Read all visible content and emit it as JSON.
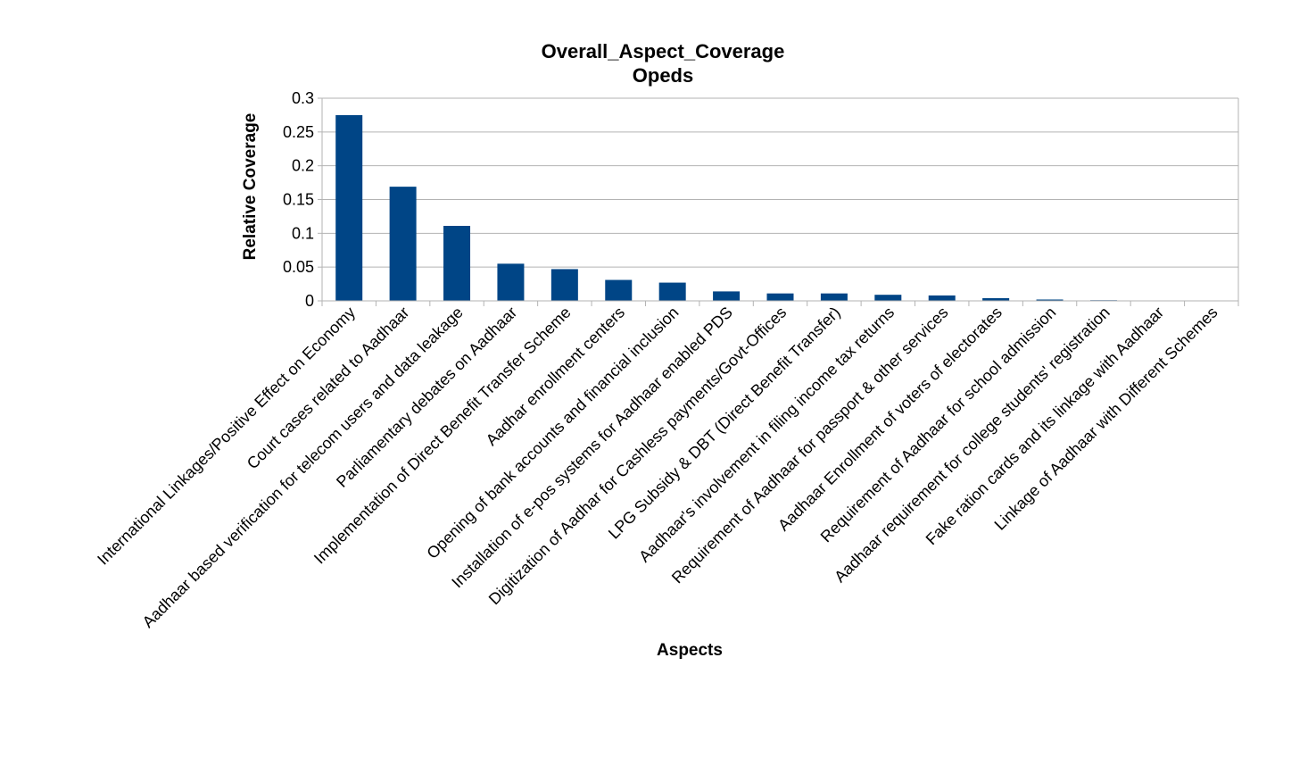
{
  "chart_data": {
    "type": "bar",
    "title": "Overall_Aspect_Coverage",
    "subtitle": "Opeds",
    "xlabel": "Aspects",
    "ylabel": "Relative Coverage",
    "ylim": [
      0,
      0.3
    ],
    "yticks": [
      0,
      0.05,
      0.1,
      0.15,
      0.2,
      0.25,
      0.3
    ],
    "ytick_labels": [
      "0",
      "0.05",
      "0.1",
      "0.15",
      "0.2",
      "0.25",
      "0.3"
    ],
    "grid": true,
    "legend": "none",
    "bar_color": "#004586",
    "categories": [
      "International Linkages/Positive Effect on Economy",
      "Court cases related to Aadhaar",
      "Aadhaar based verification for telecom users and data leakage",
      "Parliamentary debates on Aadhaar",
      "Implementation of Direct Benefit Transfer Scheme",
      "Aadhar enrollment centers",
      "Opening of bank accounts and financial inclusion",
      "Installation of e-pos systems for Aadhaar enabled PDS",
      "Digitization of Aadhar for Cashless payments/Govt-Offices",
      "LPG Subsidy & DBT (Direct Benefit Transfer)",
      "Aadhaar's involvement in filing income tax returns",
      "Requirement of Aadhaar for passport & other services",
      "Aadhaar Enrollment of voters of electorates",
      "Requirement of Aadhaar for school admission",
      "Aadhaar requirement for college students' registration",
      "Fake ration cards and its linkage with Aadhaar",
      "Linkage of Aadhaar with Different Schemes"
    ],
    "values": [
      0.275,
      0.169,
      0.111,
      0.055,
      0.047,
      0.031,
      0.027,
      0.014,
      0.011,
      0.011,
      0.009,
      0.008,
      0.004,
      0.002,
      0.001,
      0.0,
      0.0
    ]
  }
}
